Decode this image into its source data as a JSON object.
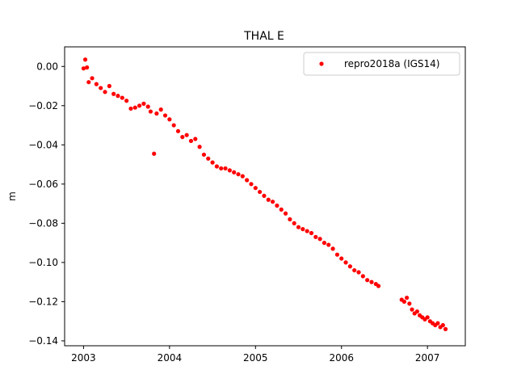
{
  "chart_data": {
    "type": "scatter",
    "title": "THAL E",
    "xlabel": "",
    "ylabel": "m",
    "xlim": [
      2002.78,
      2007.44
    ],
    "ylim": [
      -0.1425,
      0.01
    ],
    "xticks": [
      2003,
      2004,
      2005,
      2006,
      2007
    ],
    "xtick_labels": [
      "2003",
      "2004",
      "2005",
      "2006",
      "2007"
    ],
    "yticks": [
      0.0,
      -0.02,
      -0.04,
      -0.06,
      -0.08,
      -0.1,
      -0.12,
      -0.14
    ],
    "ytick_labels": [
      "0.00",
      "−0.02",
      "−0.04",
      "−0.06",
      "−0.08",
      "−0.10",
      "−0.12",
      "−0.14"
    ],
    "grid": false,
    "legend_position": "top-right",
    "series": [
      {
        "name": "repro2018a (IGS14)",
        "color": "#ff0000",
        "marker": "circle",
        "points": [
          [
            2003.0,
            -0.001
          ],
          [
            2003.02,
            0.0035
          ],
          [
            2003.04,
            -0.0005
          ],
          [
            2003.06,
            -0.008
          ],
          [
            2003.1,
            -0.006
          ],
          [
            2003.15,
            -0.009
          ],
          [
            2003.2,
            -0.011
          ],
          [
            2003.25,
            -0.013
          ],
          [
            2003.3,
            -0.01
          ],
          [
            2003.35,
            -0.014
          ],
          [
            2003.4,
            -0.015
          ],
          [
            2003.45,
            -0.016
          ],
          [
            2003.5,
            -0.0175
          ],
          [
            2003.55,
            -0.0215
          ],
          [
            2003.6,
            -0.021
          ],
          [
            2003.65,
            -0.02
          ],
          [
            2003.7,
            -0.019
          ],
          [
            2003.75,
            -0.0205
          ],
          [
            2003.78,
            -0.023
          ],
          [
            2003.82,
            -0.0445
          ],
          [
            2003.85,
            -0.024
          ],
          [
            2003.9,
            -0.022
          ],
          [
            2003.95,
            -0.025
          ],
          [
            2004.0,
            -0.027
          ],
          [
            2004.05,
            -0.03
          ],
          [
            2004.1,
            -0.033
          ],
          [
            2004.15,
            -0.036
          ],
          [
            2004.2,
            -0.035
          ],
          [
            2004.25,
            -0.038
          ],
          [
            2004.3,
            -0.037
          ],
          [
            2004.35,
            -0.041
          ],
          [
            2004.4,
            -0.045
          ],
          [
            2004.45,
            -0.047
          ],
          [
            2004.5,
            -0.049
          ],
          [
            2004.55,
            -0.051
          ],
          [
            2004.6,
            -0.052
          ],
          [
            2004.65,
            -0.052
          ],
          [
            2004.7,
            -0.053
          ],
          [
            2004.75,
            -0.054
          ],
          [
            2004.8,
            -0.055
          ],
          [
            2004.85,
            -0.056
          ],
          [
            2004.9,
            -0.058
          ],
          [
            2004.95,
            -0.06
          ],
          [
            2005.0,
            -0.062
          ],
          [
            2005.05,
            -0.064
          ],
          [
            2005.1,
            -0.066
          ],
          [
            2005.15,
            -0.068
          ],
          [
            2005.2,
            -0.069
          ],
          [
            2005.25,
            -0.071
          ],
          [
            2005.3,
            -0.073
          ],
          [
            2005.35,
            -0.075
          ],
          [
            2005.4,
            -0.078
          ],
          [
            2005.45,
            -0.08
          ],
          [
            2005.5,
            -0.082
          ],
          [
            2005.55,
            -0.083
          ],
          [
            2005.6,
            -0.084
          ],
          [
            2005.65,
            -0.085
          ],
          [
            2005.7,
            -0.087
          ],
          [
            2005.75,
            -0.088
          ],
          [
            2005.8,
            -0.09
          ],
          [
            2005.85,
            -0.091
          ],
          [
            2005.9,
            -0.093
          ],
          [
            2005.95,
            -0.096
          ],
          [
            2006.0,
            -0.098
          ],
          [
            2006.05,
            -0.1
          ],
          [
            2006.1,
            -0.102
          ],
          [
            2006.15,
            -0.104
          ],
          [
            2006.2,
            -0.105
          ],
          [
            2006.25,
            -0.107
          ],
          [
            2006.3,
            -0.109
          ],
          [
            2006.35,
            -0.11
          ],
          [
            2006.4,
            -0.111
          ],
          [
            2006.43,
            -0.112
          ],
          [
            2006.7,
            -0.119
          ],
          [
            2006.73,
            -0.12
          ],
          [
            2006.76,
            -0.118
          ],
          [
            2006.79,
            -0.121
          ],
          [
            2006.82,
            -0.124
          ],
          [
            2006.85,
            -0.126
          ],
          [
            2006.88,
            -0.125
          ],
          [
            2006.91,
            -0.127
          ],
          [
            2006.94,
            -0.128
          ],
          [
            2006.97,
            -0.129
          ],
          [
            2007.0,
            -0.128
          ],
          [
            2007.03,
            -0.13
          ],
          [
            2007.06,
            -0.131
          ],
          [
            2007.09,
            -0.132
          ],
          [
            2007.12,
            -0.131
          ],
          [
            2007.15,
            -0.133
          ],
          [
            2007.18,
            -0.132
          ],
          [
            2007.21,
            -0.134
          ]
        ]
      }
    ]
  }
}
